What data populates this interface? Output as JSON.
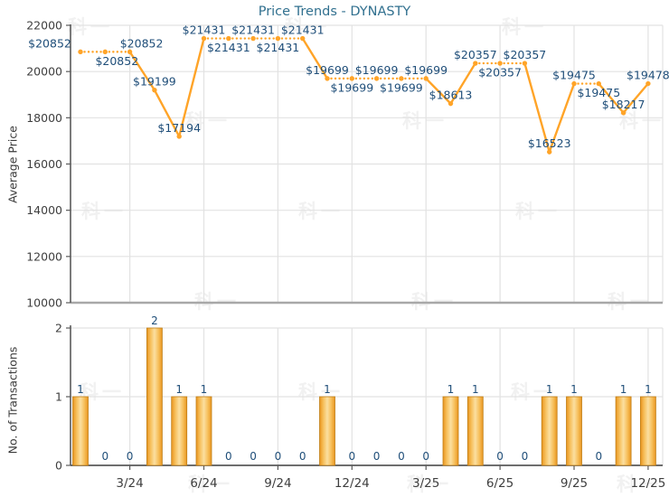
{
  "title": "Price Trends - DYNASTY",
  "watermark": {
    "text": "科一"
  },
  "colors": {
    "line": "#FFA428",
    "marker": "#FFA428",
    "bar_fill_edge": "#E89420",
    "bar_fill_mid": "#F6BC55",
    "bar_fill_center": "#FBDFA0",
    "bar_border": "#C07F17",
    "point_label": "#1F4E79",
    "count_label": "#1F4E79",
    "tick_label": "#3F3F3F",
    "title_color": "#31708F",
    "grid": "#E2E2E2",
    "axis": "#5A5A5A",
    "top_chart_bottom_border": "#A8A8A8"
  },
  "chart_data": [
    {
      "type": "line",
      "name": "average-price-trend",
      "title": "Price Trends - DYNASTY",
      "xlabel": "",
      "ylabel": "Average Price",
      "ylim": [
        10000,
        22000
      ],
      "yticks": [
        22000,
        20000,
        18000,
        16000,
        14000,
        12000,
        10000
      ],
      "grid": true,
      "categories": [
        "1/24",
        "2/24",
        "3/24",
        "4/24",
        "5/24",
        "6/24",
        "7/24",
        "8/24",
        "9/24",
        "10/24",
        "11/24",
        "12/24",
        "1/25",
        "2/25",
        "3/25",
        "4/25",
        "5/25",
        "6/25",
        "7/25",
        "8/25",
        "9/25",
        "10/25",
        "11/25",
        "12/25"
      ],
      "x_tick_labels": [
        "3/24",
        "6/24",
        "9/24",
        "12/24",
        "3/25",
        "6/25",
        "9/25",
        "12/25"
      ],
      "series": [
        {
          "name": "Average Price",
          "values": [
            20852,
            20852,
            20852,
            19199,
            17194,
            21431,
            21431,
            21431,
            21431,
            21431,
            19699,
            19699,
            19699,
            19699,
            19699,
            18613,
            20357,
            20357,
            20357,
            16523,
            19475,
            19475,
            18217,
            19478
          ]
        }
      ],
      "point_labels": [
        "$20852",
        "$20852",
        "$20852",
        "$19199",
        "$17194",
        "$21431",
        "$21431",
        "$21431",
        "$21431",
        "$21431",
        "$19699",
        "$19699",
        "$19699",
        "$19699",
        "$19699",
        "$18613",
        "$20357",
        "$20357",
        "$20357",
        "$16523",
        "$19475",
        "$19475",
        "$18217",
        "$19478"
      ],
      "label_position": [
        "above",
        "below",
        "above",
        "above",
        "above",
        "above",
        "below",
        "above",
        "below",
        "above",
        "above",
        "below",
        "above",
        "below",
        "above",
        "above",
        "above",
        "below",
        "above",
        "above",
        "above",
        "below",
        "above",
        "above"
      ],
      "dotted_segments_when_value_unchanged": true
    },
    {
      "type": "bar",
      "name": "transactions",
      "xlabel": "",
      "ylabel": "No. of Transactions",
      "ylim": [
        0,
        2
      ],
      "yticks": [
        0,
        1,
        2
      ],
      "grid": true,
      "categories": [
        "1/24",
        "2/24",
        "3/24",
        "4/24",
        "5/24",
        "6/24",
        "7/24",
        "8/24",
        "9/24",
        "10/24",
        "11/24",
        "12/24",
        "1/25",
        "2/25",
        "3/25",
        "4/25",
        "5/25",
        "6/25",
        "7/25",
        "8/25",
        "9/25",
        "10/25",
        "11/25",
        "12/25"
      ],
      "x_tick_labels": [
        "3/24",
        "6/24",
        "9/24",
        "12/24",
        "3/25",
        "6/25",
        "9/25",
        "12/25"
      ],
      "values": [
        1,
        0,
        0,
        2,
        1,
        1,
        0,
        0,
        0,
        0,
        1,
        0,
        0,
        0,
        0,
        1,
        1,
        0,
        0,
        1,
        1,
        0,
        1,
        1
      ]
    }
  ]
}
